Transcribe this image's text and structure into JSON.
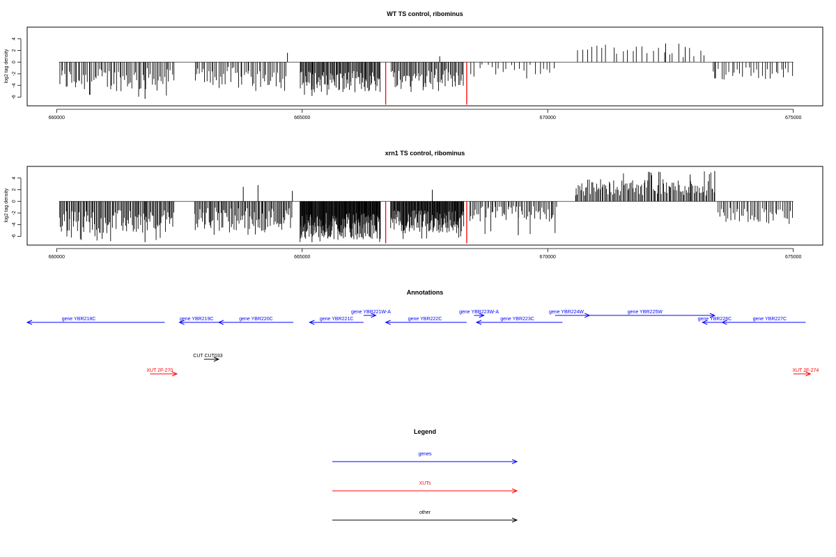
{
  "chart_data": [
    {
      "type": "bar",
      "title": "WT TS control, ribominus",
      "ylabel": "log2 tag density",
      "xlim": [
        659400,
        675600
      ],
      "ylim": [
        -7.5,
        6
      ],
      "x_ticks": [
        660000,
        665000,
        670000,
        675000
      ],
      "y_ticks": [
        -6,
        -4,
        -2,
        0,
        2,
        4
      ],
      "grid": false,
      "highlight_color": "#ff0000",
      "bar_color": "#000000",
      "highlights": [
        {
          "x": 666700,
          "value": -7.3
        },
        {
          "x": 668350,
          "value": -7.3
        }
      ],
      "landmarks": [
        {
          "x": 661800,
          "value": -6.3
        },
        {
          "x": 664700,
          "value": 1.6
        },
        {
          "x": 665200,
          "value": -5.8
        },
        {
          "x": 667800,
          "value": 1.0
        },
        {
          "x": 672400,
          "value": 3.2
        },
        {
          "x": 672800,
          "value": 2.6
        },
        {
          "x": 673400,
          "value": -2.8
        }
      ],
      "segments": [
        {
          "x0": 660050,
          "x1": 662400,
          "lo": -5.0,
          "hi": -1.0,
          "density": 75,
          "max_dip": -6.3
        },
        {
          "x0": 662800,
          "x1": 664700,
          "lo": -4.2,
          "hi": -0.8,
          "density": 55,
          "max_dip": -5.0
        },
        {
          "x0": 664950,
          "x1": 666600,
          "lo": -5.2,
          "hi": -1.5,
          "density": 95,
          "max_dip": -6.0
        },
        {
          "x0": 666800,
          "x1": 668300,
          "lo": -4.3,
          "hi": -1.0,
          "density": 65,
          "max_dip": -5.2
        },
        {
          "x0": 668400,
          "x1": 670200,
          "lo": -2.2,
          "hi": -0.4,
          "density": 22,
          "max_dip": -2.9
        },
        {
          "x0": 670550,
          "x1": 673250,
          "lo": 0.8,
          "hi": 2.8,
          "density": 26,
          "max_dip": 3.2
        },
        {
          "x0": 673350,
          "x1": 675000,
          "lo": -3.0,
          "hi": -0.8,
          "density": 30,
          "max_dip": -3.2
        }
      ]
    },
    {
      "type": "bar",
      "title": "xrn1 TS control, ribominus",
      "ylabel": "log2 tag density",
      "xlim": [
        659400,
        675600
      ],
      "ylim": [
        -7.5,
        6
      ],
      "x_ticks": [
        660000,
        665000,
        670000,
        675000
      ],
      "y_ticks": [
        -6,
        -4,
        -2,
        0,
        2,
        4
      ],
      "grid": false,
      "highlight_color": "#ff0000",
      "bar_color": "#000000",
      "highlights": [
        {
          "x": 666700,
          "value": -7.2
        },
        {
          "x": 668350,
          "value": -7.2
        }
      ],
      "landmarks": [
        {
          "x": 661800,
          "value": -7.0
        },
        {
          "x": 663800,
          "value": 2.5
        },
        {
          "x": 664100,
          "value": 2.8
        },
        {
          "x": 664800,
          "value": 1.8
        },
        {
          "x": 667650,
          "value": 2.0
        },
        {
          "x": 665200,
          "value": -7.0
        },
        {
          "x": 673400,
          "value": 5.2
        },
        {
          "x": 672900,
          "value": 4.6
        },
        {
          "x": 669400,
          "value": -5.8
        }
      ],
      "segments": [
        {
          "x0": 660050,
          "x1": 662400,
          "lo": -5.5,
          "hi": -1.5,
          "density": 110,
          "max_dip": -7.0
        },
        {
          "x0": 662800,
          "x1": 664800,
          "lo": -5.0,
          "hi": -1.0,
          "density": 90,
          "max_dip": -5.8
        },
        {
          "x0": 664950,
          "x1": 666600,
          "lo": -6.5,
          "hi": -2.0,
          "density": 170,
          "max_dip": -7.0
        },
        {
          "x0": 666800,
          "x1": 668300,
          "lo": -5.5,
          "hi": -1.5,
          "density": 130,
          "max_dip": -6.5
        },
        {
          "x0": 668400,
          "x1": 670200,
          "lo": -3.5,
          "hi": -0.8,
          "density": 60,
          "max_dip": -5.8
        },
        {
          "x0": 670550,
          "x1": 673400,
          "lo": 1.0,
          "hi": 3.8,
          "density": 120,
          "max_dip": 5.2
        },
        {
          "x0": 673450,
          "x1": 675000,
          "lo": -3.6,
          "hi": -1.0,
          "density": 45,
          "max_dip": -4.2
        }
      ]
    }
  ],
  "annotations": {
    "title": "Annotations",
    "xlim": [
      659400,
      675600
    ],
    "genes_color": "#0000ff",
    "xuts_color": "#ff0000",
    "other_color": "#000000",
    "genes": [
      {
        "label": "gene YBR218C",
        "start": 659400,
        "end": 662200,
        "strand": "-",
        "row": 2,
        "label_x": 660450
      },
      {
        "label": "gene YBR219C",
        "start": 662500,
        "end": 663300,
        "strand": "-",
        "row": 2,
        "label_x": 662850
      },
      {
        "label": "gene YBR220C",
        "start": 663300,
        "end": 664820,
        "strand": "-",
        "row": 2,
        "label_x": 664060
      },
      {
        "label": "gene YBR221C",
        "start": 665150,
        "end": 666250,
        "strand": "-",
        "row": 2,
        "label_x": 665700
      },
      {
        "label": "gene YBR221W-A",
        "start": 666250,
        "end": 666500,
        "strand": "+",
        "row": 1,
        "label_x": 666400
      },
      {
        "label": "gene YBR222C",
        "start": 666700,
        "end": 668350,
        "strand": "-",
        "row": 2,
        "label_x": 667500
      },
      {
        "label": "gene YBR223W-A",
        "start": 668500,
        "end": 668700,
        "strand": "+",
        "row": 1,
        "label_x": 668600
      },
      {
        "label": "gene YBR223C",
        "start": 668550,
        "end": 670300,
        "strand": "-",
        "row": 2,
        "label_x": 669380
      },
      {
        "label": "gene YBR224W",
        "start": 670150,
        "end": 670850,
        "strand": "+",
        "row": 1,
        "label_x": 670380
      },
      {
        "label": "gene YBR225W",
        "start": 670850,
        "end": 673400,
        "strand": "+",
        "row": 1,
        "label_x": 671980
      },
      {
        "label": "gene YBR226C",
        "start": 673150,
        "end": 673650,
        "strand": "-",
        "row": 2,
        "label_x": 673400
      },
      {
        "label": "gene YBR227C",
        "start": 673550,
        "end": 675250,
        "strand": "-",
        "row": 2,
        "label_x": 674520
      }
    ],
    "other": [
      {
        "label": "CUT CUT033",
        "start": 663000,
        "end": 663300,
        "strand": "+",
        "row": 3,
        "label_x": 663080
      }
    ],
    "xuts": [
      {
        "label": "XUT 2F-270",
        "start": 661900,
        "end": 662450,
        "strand": "+",
        "row": 4,
        "label_x": 662100
      },
      {
        "label": "XUT 2F-274",
        "start": 675000,
        "end": 675350,
        "strand": "+",
        "row": 4,
        "label_x": 675250
      }
    ]
  },
  "legend": {
    "title": "Legend",
    "items": [
      {
        "label": "genes",
        "color": "#0000ff"
      },
      {
        "label": "XUTs",
        "color": "#ff0000"
      },
      {
        "label": "other",
        "color": "#000000"
      }
    ]
  }
}
